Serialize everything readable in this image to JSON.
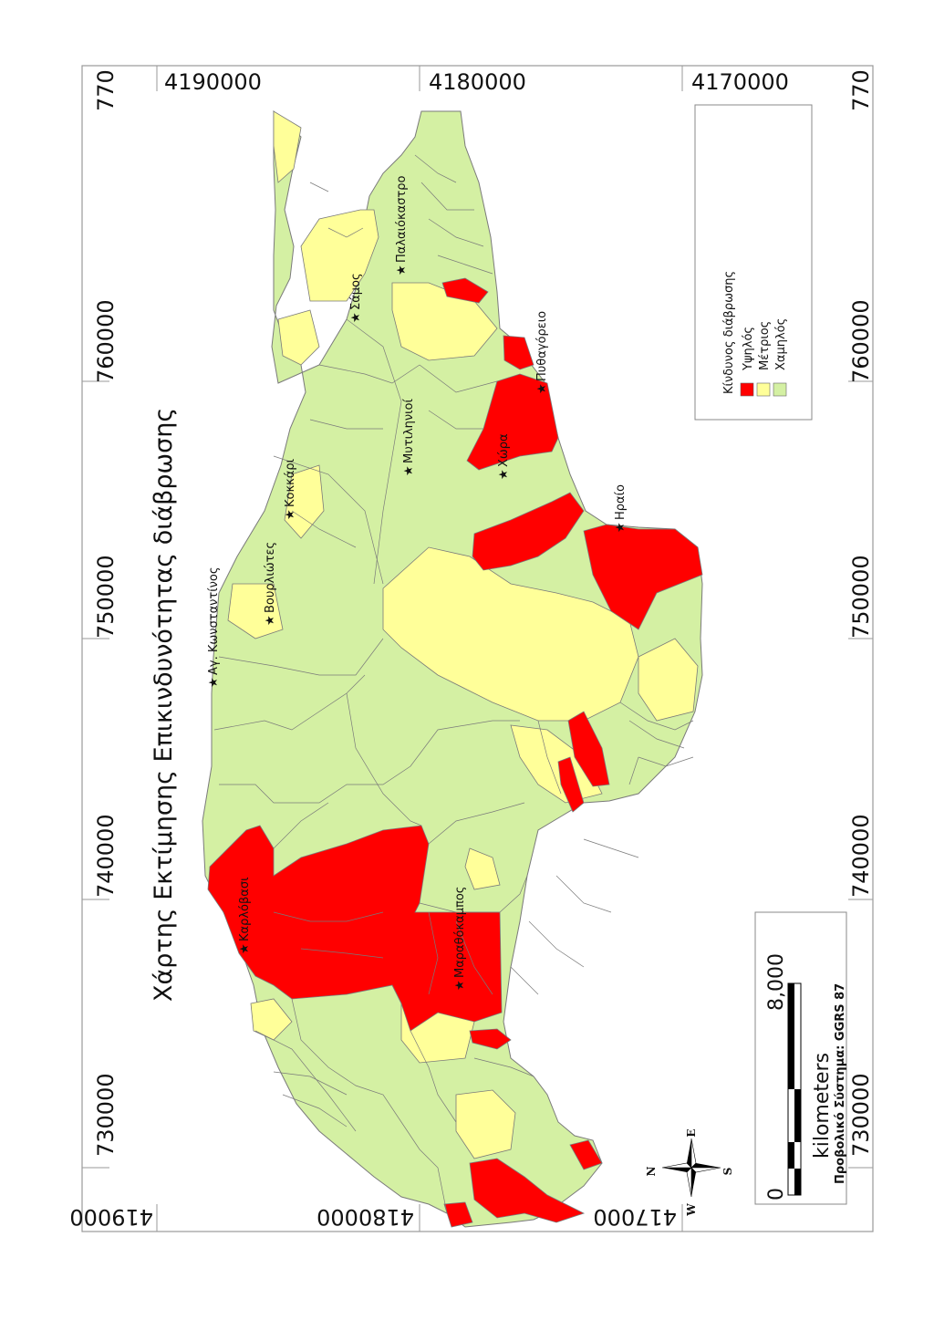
{
  "map": {
    "title": "Χάρτης Εκτίμησης Επικινδυνότητας διάβρωσης",
    "grid": {
      "x_labels": [
        "730000",
        "740000",
        "750000",
        "760000"
      ],
      "y_labels": [
        "4190000",
        "4180000",
        "4170000"
      ],
      "y_labels_bottom": [
        "419000",
        "4180000",
        "417000"
      ],
      "edge_label_top": "770",
      "edge_label_bottom": "770"
    },
    "places": [
      {
        "name": "Παλαιόκαστρο"
      },
      {
        "name": "Σάμος"
      },
      {
        "name": "Πυθαγόρειο"
      },
      {
        "name": "Μυτιληνιοί"
      },
      {
        "name": "Χώρα"
      },
      {
        "name": "Κοκκάρι"
      },
      {
        "name": "Ηραίο"
      },
      {
        "name": "Βουρλιώτες"
      },
      {
        "name": "Αγ. Κωνσταντίνος"
      },
      {
        "name": "Καρλόβασι"
      },
      {
        "name": "Μαραθόκαμπος"
      }
    ],
    "legend": {
      "title": "Κίνδυνος διάβρωσης",
      "items": [
        {
          "label": "Υψηλός",
          "color": "#ff0000"
        },
        {
          "label": "Μέτριος",
          "color": "#ffff99"
        },
        {
          "label": "Χαμηλός",
          "color": "#d4f0a3"
        }
      ]
    },
    "scale": {
      "start": "0",
      "end": "8,000",
      "unit": "kilometers",
      "projection": "Προβολικό Σύστημα: GGRS 87"
    },
    "compass": {
      "n": "N",
      "s": "S",
      "e": "E",
      "w": "W"
    },
    "colors": {
      "high": "#ff0000",
      "medium": "#ffff99",
      "low": "#d4f0a3",
      "boundary": "#7a7a7a",
      "frame": "#888888"
    }
  }
}
